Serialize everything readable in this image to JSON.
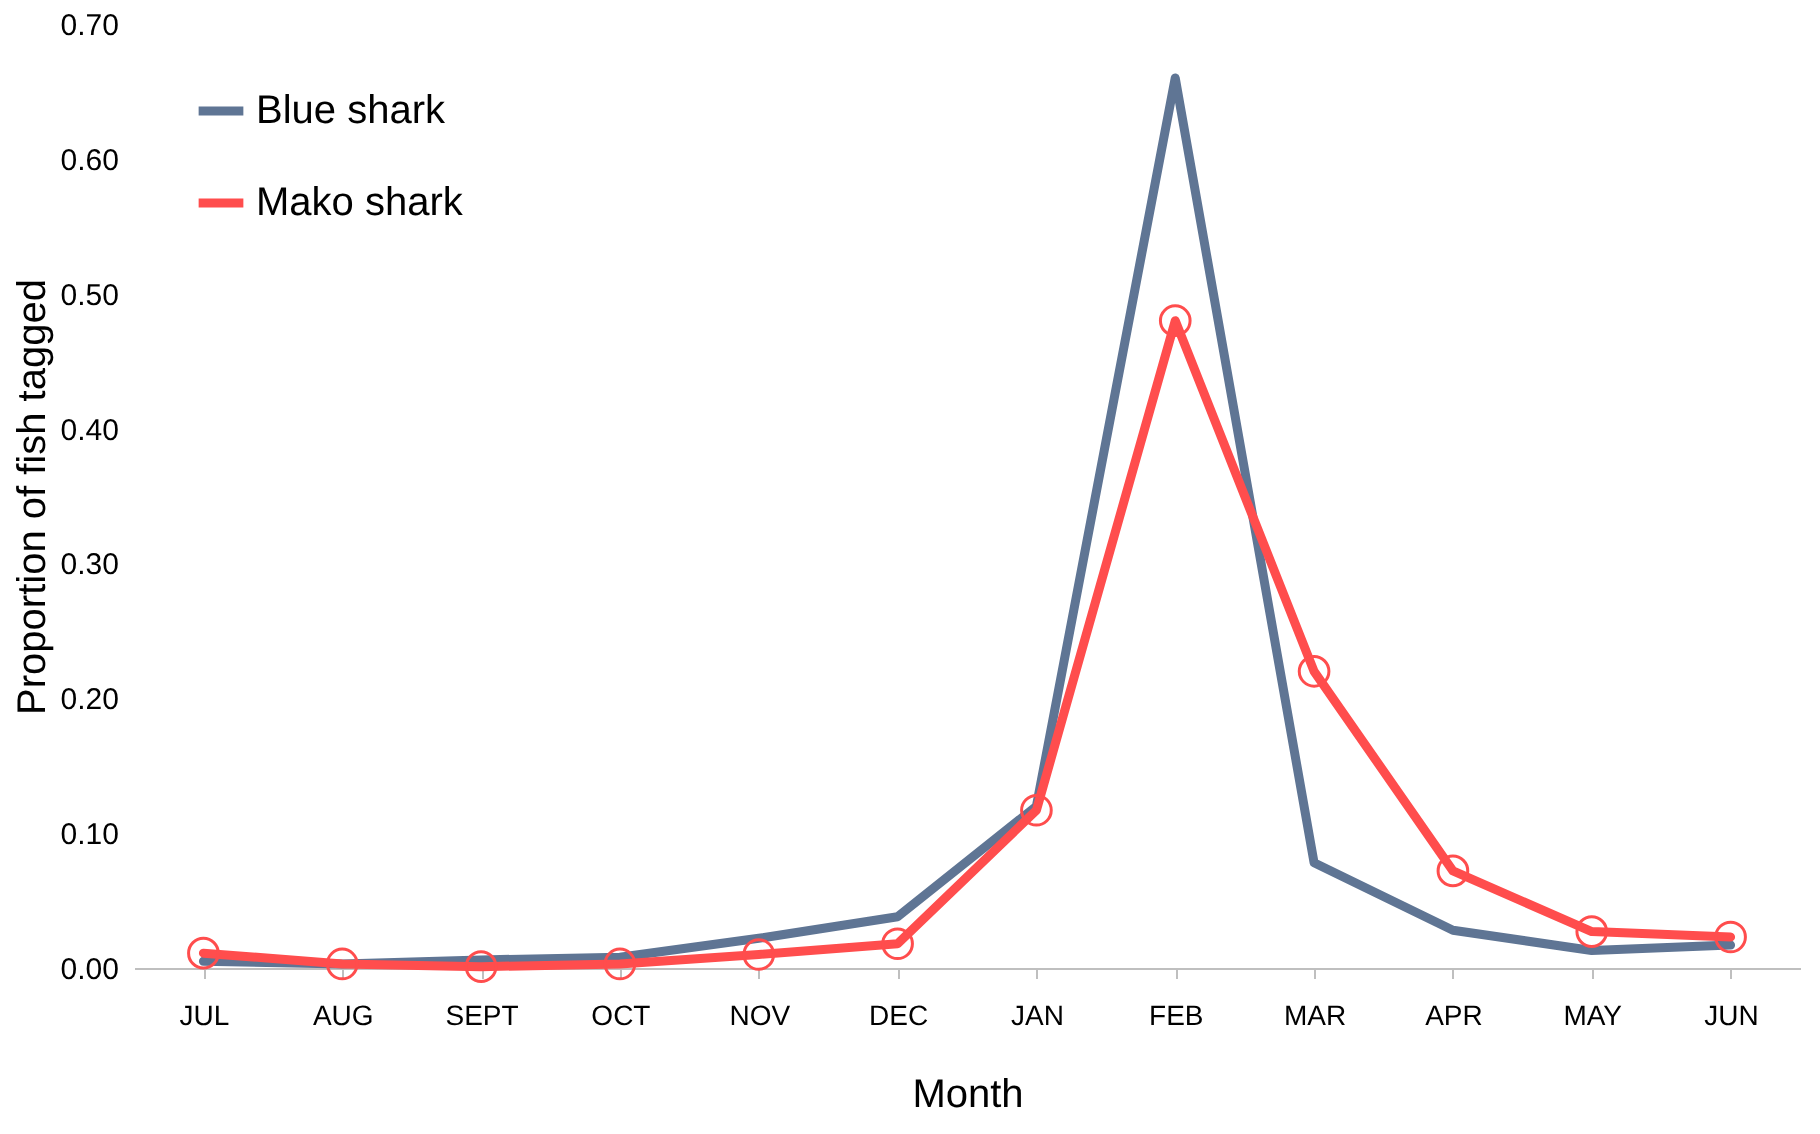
{
  "chart_data": {
    "type": "line",
    "xlabel": "Month",
    "ylabel": "Proportion of fish tagged",
    "categories": [
      "JUL",
      "AUG",
      "SEPT",
      "OCT",
      "NOV",
      "DEC",
      "JAN",
      "FEB",
      "MAR",
      "APR",
      "MAY",
      "JUN"
    ],
    "series": [
      {
        "name": "Blue shark",
        "color": "#5f7594",
        "marker": "none",
        "values": [
          0.005,
          0.003,
          0.006,
          0.008,
          0.022,
          0.038,
          0.12,
          0.66,
          0.078,
          0.028,
          0.013,
          0.017
        ]
      },
      {
        "name": "Mako shark",
        "color": "#ff4d4d",
        "marker": "circle",
        "values": [
          0.011,
          0.003,
          0.001,
          0.003,
          0.01,
          0.018,
          0.117,
          0.48,
          0.22,
          0.072,
          0.027,
          0.023
        ]
      }
    ],
    "ylim": [
      0,
      0.7
    ],
    "yticks": [
      {
        "value": 0,
        "label": "0.00"
      },
      {
        "value": 0.1,
        "label": "0.10"
      },
      {
        "value": 0.2,
        "label": "0.20"
      },
      {
        "value": 0.3,
        "label": "0.30"
      },
      {
        "value": 0.4,
        "label": "0.40"
      },
      {
        "value": 0.5,
        "label": "0.50"
      },
      {
        "value": 0.6,
        "label": "0.60"
      },
      {
        "value": 0.7,
        "label": "0.70"
      }
    ],
    "grid": false,
    "legend": "top left",
    "line_style": "solid"
  }
}
